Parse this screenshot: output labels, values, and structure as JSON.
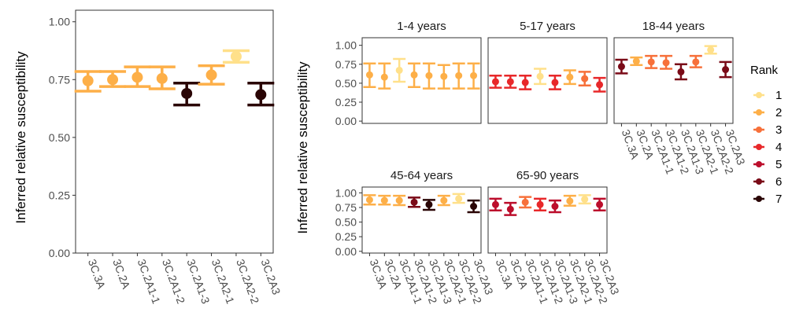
{
  "chart_data": {
    "type": "scatter",
    "error_bars": true,
    "y_label": "Inferred relative susceptibility",
    "categories": [
      "3C.3A",
      "3C.2A",
      "3C.2A1-1",
      "3C.2A1-2",
      "3C.2A1-3",
      "3C.2A2-1",
      "3C.2A2-2",
      "3C.2A3"
    ],
    "legend": {
      "title": "Rank",
      "position": "right",
      "entries": [
        {
          "label": "1",
          "color": "#FFE08A"
        },
        {
          "label": "2",
          "color": "#FDAF48"
        },
        {
          "label": "3",
          "color": "#F7703A"
        },
        {
          "label": "4",
          "color": "#E8282A"
        },
        {
          "label": "5",
          "color": "#BC0E2C"
        },
        {
          "label": "6",
          "color": "#7A0A17"
        },
        {
          "label": "7",
          "color": "#2A0505"
        }
      ]
    },
    "overall": {
      "ylim": [
        0,
        1.05
      ],
      "y_ticks": [
        "0.00",
        "0.25",
        "0.50",
        "0.75",
        "1.00"
      ],
      "points": [
        {
          "category": "3C.3A",
          "y": 0.745,
          "lo": 0.7,
          "hi": 0.785,
          "rank": "2"
        },
        {
          "category": "3C.2A",
          "y": 0.75,
          "lo": 0.72,
          "hi": 0.785,
          "rank": "2"
        },
        {
          "category": "3C.2A1-1",
          "y": 0.76,
          "lo": 0.72,
          "hi": 0.805,
          "rank": "2"
        },
        {
          "category": "3C.2A1-2",
          "y": 0.755,
          "lo": 0.71,
          "hi": 0.805,
          "rank": "2"
        },
        {
          "category": "3C.2A1-3",
          "y": 0.69,
          "lo": 0.64,
          "hi": 0.735,
          "rank": "7"
        },
        {
          "category": "3C.2A2-1",
          "y": 0.77,
          "lo": 0.73,
          "hi": 0.81,
          "rank": "2"
        },
        {
          "category": "3C.2A2-2",
          "y": 0.85,
          "lo": 0.825,
          "hi": 0.875,
          "rank": "1"
        },
        {
          "category": "3C.2A3",
          "y": 0.685,
          "lo": 0.64,
          "hi": 0.735,
          "rank": "7"
        }
      ]
    },
    "facets": [
      {
        "title": "1-4 years",
        "ylim": [
          -0.03,
          1.1
        ],
        "y_ticks": [
          "0.00",
          "0.25",
          "0.50",
          "0.75",
          "1.00"
        ],
        "points": [
          {
            "category": "3C.3A",
            "y": 0.61,
            "lo": 0.45,
            "hi": 0.76,
            "rank": "2"
          },
          {
            "category": "3C.2A",
            "y": 0.58,
            "lo": 0.43,
            "hi": 0.76,
            "rank": "2"
          },
          {
            "category": "3C.2A1-1",
            "y": 0.67,
            "lo": 0.52,
            "hi": 0.82,
            "rank": "1"
          },
          {
            "category": "3C.2A1-2",
            "y": 0.61,
            "lo": 0.45,
            "hi": 0.76,
            "rank": "2"
          },
          {
            "category": "3C.2A1-3",
            "y": 0.6,
            "lo": 0.43,
            "hi": 0.76,
            "rank": "2"
          },
          {
            "category": "3C.2A2-1",
            "y": 0.59,
            "lo": 0.43,
            "hi": 0.74,
            "rank": "2"
          },
          {
            "category": "3C.2A2-2",
            "y": 0.6,
            "lo": 0.43,
            "hi": 0.76,
            "rank": "2"
          },
          {
            "category": "3C.2A3",
            "y": 0.6,
            "lo": 0.43,
            "hi": 0.76,
            "rank": "2"
          }
        ]
      },
      {
        "title": "5-17 years",
        "ylim": [
          -0.03,
          1.1
        ],
        "y_ticks": [
          "0.00",
          "0.25",
          "0.50",
          "0.75",
          "1.00"
        ],
        "points": [
          {
            "category": "3C.3A",
            "y": 0.52,
            "lo": 0.44,
            "hi": 0.6,
            "rank": "4"
          },
          {
            "category": "3C.2A",
            "y": 0.52,
            "lo": 0.44,
            "hi": 0.6,
            "rank": "4"
          },
          {
            "category": "3C.2A1-1",
            "y": 0.51,
            "lo": 0.42,
            "hi": 0.6,
            "rank": "4"
          },
          {
            "category": "3C.2A1-2",
            "y": 0.59,
            "lo": 0.49,
            "hi": 0.69,
            "rank": "1"
          },
          {
            "category": "3C.2A1-3",
            "y": 0.51,
            "lo": 0.42,
            "hi": 0.6,
            "rank": "4"
          },
          {
            "category": "3C.2A2-1",
            "y": 0.58,
            "lo": 0.49,
            "hi": 0.67,
            "rank": "2"
          },
          {
            "category": "3C.2A2-2",
            "y": 0.56,
            "lo": 0.47,
            "hi": 0.65,
            "rank": "3"
          },
          {
            "category": "3C.2A3",
            "y": 0.48,
            "lo": 0.39,
            "hi": 0.57,
            "rank": "4"
          }
        ]
      },
      {
        "title": "18-44 years",
        "ylim": [
          -0.03,
          1.1
        ],
        "y_ticks": [
          "0.00",
          "0.25",
          "0.50",
          "0.75",
          "1.00"
        ],
        "points": [
          {
            "category": "3C.3A",
            "y": 0.72,
            "lo": 0.63,
            "hi": 0.81,
            "rank": "6"
          },
          {
            "category": "3C.2A",
            "y": 0.79,
            "lo": 0.74,
            "hi": 0.84,
            "rank": "2"
          },
          {
            "category": "3C.2A1-1",
            "y": 0.78,
            "lo": 0.7,
            "hi": 0.86,
            "rank": "3"
          },
          {
            "category": "3C.2A1-2",
            "y": 0.77,
            "lo": 0.69,
            "hi": 0.86,
            "rank": "3"
          },
          {
            "category": "3C.2A1-3",
            "y": 0.65,
            "lo": 0.55,
            "hi": 0.75,
            "rank": "6"
          },
          {
            "category": "3C.2A2-1",
            "y": 0.78,
            "lo": 0.71,
            "hi": 0.86,
            "rank": "3"
          },
          {
            "category": "3C.2A2-2",
            "y": 0.94,
            "lo": 0.89,
            "hi": 0.99,
            "rank": "1"
          },
          {
            "category": "3C.2A3",
            "y": 0.68,
            "lo": 0.58,
            "hi": 0.78,
            "rank": "6"
          }
        ]
      },
      {
        "title": "45-64 years",
        "ylim": [
          -0.03,
          1.1
        ],
        "y_ticks": [
          "0.00",
          "0.25",
          "0.50",
          "0.75",
          "1.00"
        ],
        "points": [
          {
            "category": "3C.3A",
            "y": 0.88,
            "lo": 0.8,
            "hi": 0.96,
            "rank": "2"
          },
          {
            "category": "3C.2A",
            "y": 0.87,
            "lo": 0.8,
            "hi": 0.95,
            "rank": "2"
          },
          {
            "category": "3C.2A1-1",
            "y": 0.87,
            "lo": 0.79,
            "hi": 0.95,
            "rank": "2"
          },
          {
            "category": "3C.2A1-2",
            "y": 0.84,
            "lo": 0.76,
            "hi": 0.92,
            "rank": "6"
          },
          {
            "category": "3C.2A1-3",
            "y": 0.8,
            "lo": 0.71,
            "hi": 0.88,
            "rank": "7"
          },
          {
            "category": "3C.2A2-1",
            "y": 0.87,
            "lo": 0.79,
            "hi": 0.95,
            "rank": "2"
          },
          {
            "category": "3C.2A2-2",
            "y": 0.9,
            "lo": 0.83,
            "hi": 0.98,
            "rank": "1"
          },
          {
            "category": "3C.2A3",
            "y": 0.77,
            "lo": 0.67,
            "hi": 0.87,
            "rank": "7"
          }
        ]
      },
      {
        "title": "65-90 years",
        "ylim": [
          -0.03,
          1.1
        ],
        "y_ticks": [
          "0.00",
          "0.25",
          "0.50",
          "0.75",
          "1.00"
        ],
        "points": [
          {
            "category": "3C.3A",
            "y": 0.8,
            "lo": 0.7,
            "hi": 0.9,
            "rank": "5"
          },
          {
            "category": "3C.2A",
            "y": 0.72,
            "lo": 0.62,
            "hi": 0.83,
            "rank": "5"
          },
          {
            "category": "3C.2A1-1",
            "y": 0.84,
            "lo": 0.75,
            "hi": 0.93,
            "rank": "3"
          },
          {
            "category": "3C.2A1-2",
            "y": 0.8,
            "lo": 0.7,
            "hi": 0.9,
            "rank": "4"
          },
          {
            "category": "3C.2A1-3",
            "y": 0.77,
            "lo": 0.67,
            "hi": 0.87,
            "rank": "5"
          },
          {
            "category": "3C.2A2-1",
            "y": 0.86,
            "lo": 0.78,
            "hi": 0.95,
            "rank": "2"
          },
          {
            "category": "3C.2A2-2",
            "y": 0.89,
            "lo": 0.82,
            "hi": 0.96,
            "rank": "1"
          },
          {
            "category": "3C.2A3",
            "y": 0.8,
            "lo": 0.7,
            "hi": 0.9,
            "rank": "5"
          }
        ]
      }
    ]
  }
}
